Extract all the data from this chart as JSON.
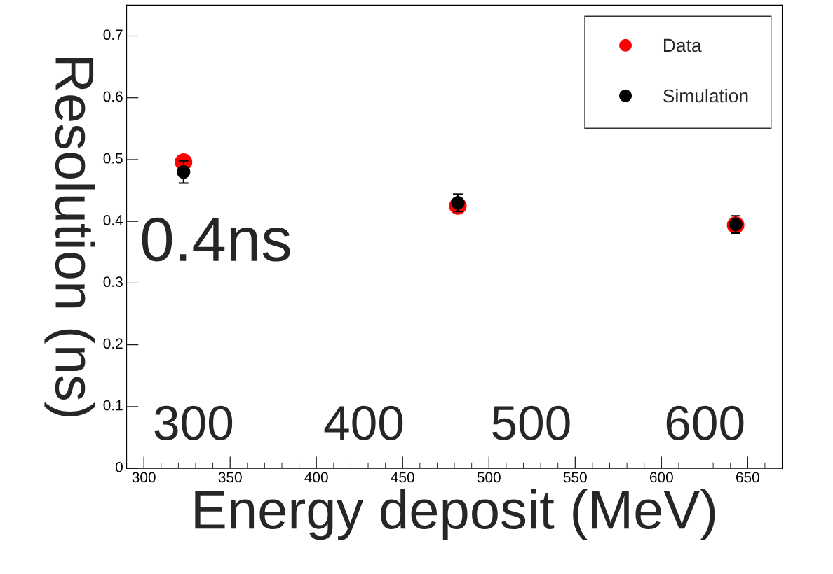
{
  "chart_data": {
    "type": "scatter",
    "xlabel": "Energy deposit (MeV)",
    "ylabel": "Resolution (ns)",
    "xlim": [
      290,
      670
    ],
    "xticks": [
      300,
      350,
      400,
      450,
      500,
      550,
      600,
      650
    ],
    "ylim": [
      0,
      0.75
    ],
    "yticks": [
      0,
      0.1,
      0.2,
      0.3,
      0.4,
      0.5,
      0.6,
      0.7
    ],
    "series": [
      {
        "name": "Data",
        "color": "#ff0000",
        "x": [
          323,
          482,
          643
        ],
        "values": [
          0.496,
          0.425,
          0.394
        ]
      },
      {
        "name": "Simulation",
        "color": "#000000",
        "x": [
          323,
          482,
          643
        ],
        "values": [
          0.48,
          0.43,
          0.395
        ],
        "errors": [
          0.018,
          0.014,
          0.014
        ]
      }
    ],
    "marker": "circle",
    "grid": false,
    "legend": "top right",
    "annotations": [
      "0.4ns",
      "300",
      "400",
      "500",
      "600"
    ]
  }
}
